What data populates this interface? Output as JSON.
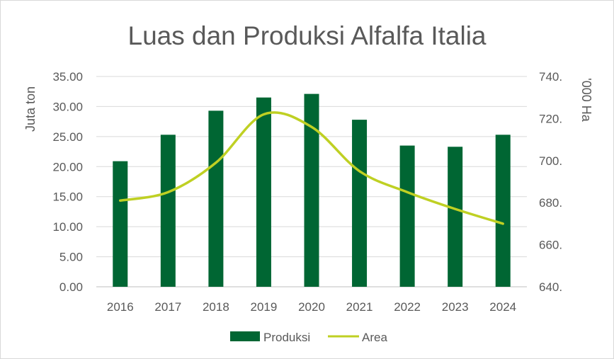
{
  "chart_data": {
    "type": "bar",
    "title": "Luas dan Produksi Alfalfa Italia",
    "categories": [
      "2016",
      "2017",
      "2018",
      "2019",
      "2020",
      "2021",
      "2022",
      "2023",
      "2024"
    ],
    "series": [
      {
        "name": "Produksi",
        "type": "bar",
        "axis": "left",
        "color": "#006633",
        "values": [
          20.9,
          25.3,
          29.3,
          31.5,
          32.1,
          27.8,
          23.5,
          23.3,
          25.3
        ]
      },
      {
        "name": "Area",
        "type": "line",
        "smooth": true,
        "axis": "right",
        "color": "#bfd023",
        "values": [
          681,
          685,
          699,
          722,
          716,
          695,
          685,
          677,
          670
        ]
      }
    ],
    "ylabel": "Juta ton",
    "y2label": "'000 Ha",
    "ylim": [
      0,
      35
    ],
    "y2lim": [
      640,
      740
    ],
    "yticks": [
      "0.00",
      "5.00",
      "10.00",
      "15.00",
      "20.00",
      "25.00",
      "30.00",
      "35.00"
    ],
    "y2ticks": [
      "640.",
      "660.",
      "680.",
      "700.",
      "720.",
      "740."
    ],
    "grid": true,
    "legend": "bottom"
  }
}
